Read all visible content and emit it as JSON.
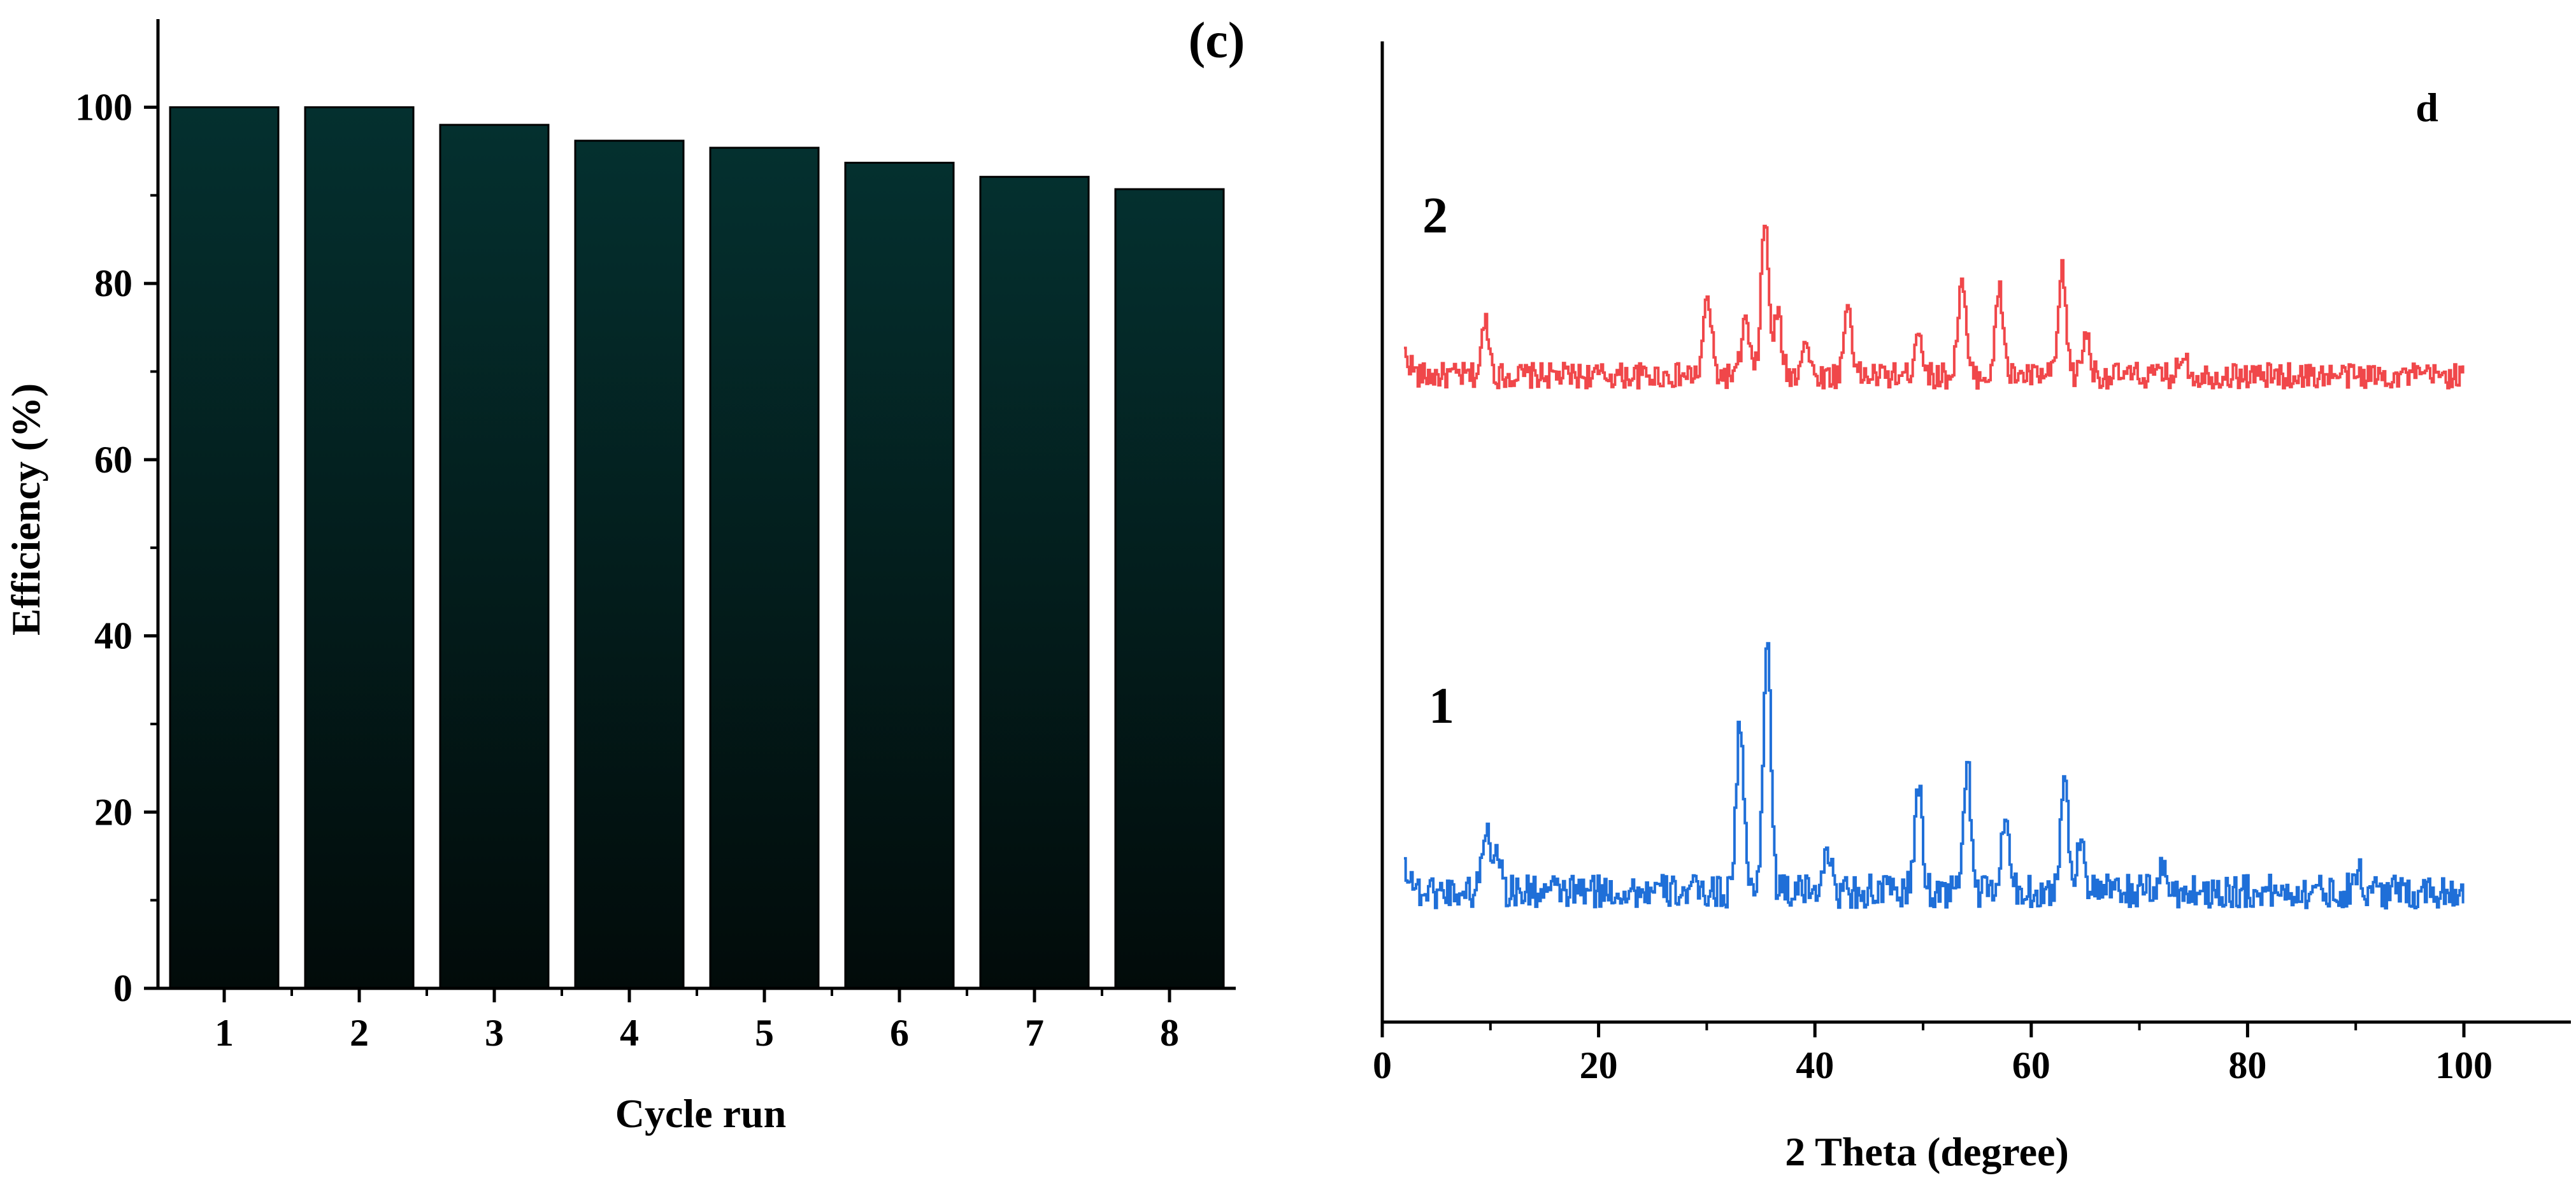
{
  "chart_data": [
    {
      "type": "bar",
      "panel_label": "(c)",
      "categories": [
        "1",
        "2",
        "3",
        "4",
        "5",
        "6",
        "7",
        "8"
      ],
      "values": [
        100,
        100,
        98,
        96.2,
        95.4,
        93.7,
        92.1,
        90.7
      ],
      "xlabel": "Cycle run",
      "ylabel": "Efficiency (%)",
      "ylim": [
        0,
        110
      ],
      "yticks": [
        0,
        20,
        40,
        60,
        80,
        100
      ],
      "bar_color_top": "#04302f",
      "bar_color_bottom": "#020b0a",
      "grid": false
    },
    {
      "type": "line",
      "panel_label": "d",
      "xlabel": "2 Theta (degree)",
      "xlim": [
        0,
        110
      ],
      "xticks": [
        0,
        20,
        40,
        60,
        80,
        100
      ],
      "grid": false,
      "series": [
        {
          "name": "2",
          "color": "#f0474a",
          "baseline": 72,
          "offset": 0,
          "peaks": [
            [
              9.5,
              9
            ],
            [
              30,
              13
            ],
            [
              33.5,
              9
            ],
            [
              35.3,
              25
            ],
            [
              36.5,
              10
            ],
            [
              39,
              6
            ],
            [
              43,
              12
            ],
            [
              49.5,
              8
            ],
            [
              53.5,
              16
            ],
            [
              57,
              14
            ],
            [
              62.8,
              17
            ],
            [
              65,
              7
            ],
            [
              74,
              4
            ]
          ]
        },
        {
          "name": "1",
          "color": "#1f6fd8",
          "baseline": 11,
          "offset": 0,
          "peaks": [
            [
              9.5,
              8
            ],
            [
              10.5,
              6
            ],
            [
              33,
              21
            ],
            [
              35.5,
              32
            ],
            [
              41,
              6
            ],
            [
              49.5,
              13
            ],
            [
              54,
              16
            ],
            [
              57.5,
              9
            ],
            [
              63,
              14
            ],
            [
              64.5,
              7
            ],
            [
              72,
              3
            ],
            [
              90,
              3
            ]
          ]
        }
      ]
    }
  ]
}
